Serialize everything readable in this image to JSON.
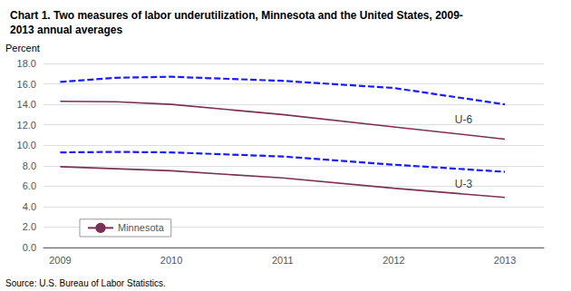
{
  "chart_data": {
    "type": "line",
    "title": "Chart 1. Two measures of labor underutilization, Minnesota and the United States, 2009-\n2013 annual averages",
    "ylabel": "Percent",
    "source": "Source: U.S. Bureau of Labor Statistics.",
    "x": [
      2009,
      2009.5,
      2010,
      2011,
      2012,
      2013
    ],
    "series": [
      {
        "color": "#1b1bff",
        "line_style": "dashed",
        "values": [
          16.2,
          16.6,
          16.7,
          16.3,
          15.6,
          14.0
        ]
      },
      {
        "color": "#1b1bff",
        "line_style": "dashed",
        "values": [
          9.3,
          9.35,
          9.3,
          8.9,
          8.1,
          7.4
        ]
      },
      {
        "name": "Minnesota",
        "color": "#7b3055",
        "line_style": "solid",
        "values": [
          14.3,
          14.25,
          14.0,
          13.0,
          11.8,
          10.6
        ]
      },
      {
        "name": "Minnesota",
        "color": "#7b3055",
        "line_style": "solid",
        "values": [
          7.9,
          7.7,
          7.5,
          6.8,
          5.8,
          4.9
        ]
      }
    ],
    "xlim": [
      2008.85,
      2013.35
    ],
    "xticks": [
      2009,
      2010,
      2011,
      2012,
      2013
    ],
    "ylim": [
      0.0,
      18.0
    ],
    "yticks": [
      {
        "value": 0.0,
        "label": "0.0"
      },
      {
        "value": 2.0,
        "label": "2.0"
      },
      {
        "value": 4.0,
        "label": "4.0"
      },
      {
        "value": 6.0,
        "label": "6.0"
      },
      {
        "value": 8.0,
        "label": "8.0"
      },
      {
        "value": 10.0,
        "label": "10.0"
      },
      {
        "value": 12.0,
        "label": "12.0"
      },
      {
        "value": 14.0,
        "label": "14.0"
      },
      {
        "value": 16.0,
        "label": "16.0"
      },
      {
        "value": 18.0,
        "label": "18.0"
      }
    ],
    "annotations": [
      {
        "text": "U-6",
        "x": 2012.55,
        "y": 12.5
      },
      {
        "text": "U-3",
        "x": 2012.55,
        "y": 6.2
      }
    ],
    "grid": true,
    "legend": "lower left"
  }
}
